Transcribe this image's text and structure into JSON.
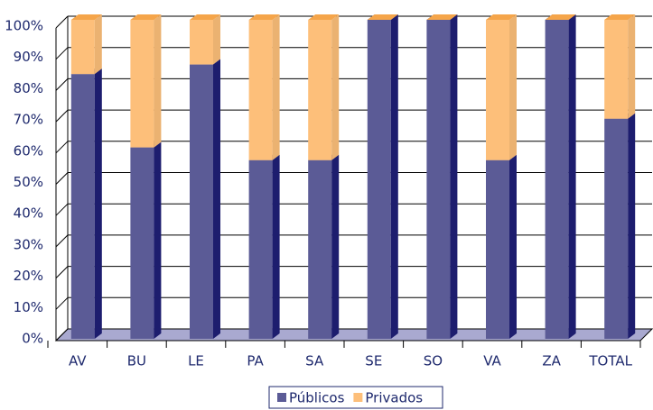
{
  "chart_data": {
    "type": "bar",
    "stacked": true,
    "categories": [
      "AV",
      "BU",
      "LE",
      "PA",
      "SA",
      "SE",
      "SO",
      "VA",
      "ZA",
      "TOTAL"
    ],
    "series": [
      {
        "name": "Públicos",
        "color": "#5b5b96",
        "values": [
          83,
          60,
          86,
          56,
          56,
          100,
          100,
          56,
          100,
          69
        ]
      },
      {
        "name": "Privados",
        "color": "#fdbf7a",
        "values": [
          17,
          40,
          14,
          44,
          44,
          0,
          0,
          44,
          0,
          31
        ]
      }
    ],
    "ylim": [
      0,
      100
    ],
    "yticks": [
      {
        "value": 0,
        "label": "0%"
      },
      {
        "value": 10,
        "label": "10%"
      },
      {
        "value": 20,
        "label": "20%"
      },
      {
        "value": 30,
        "label": "30%"
      },
      {
        "value": 40,
        "label": "40%"
      },
      {
        "value": 50,
        "label": "50%"
      },
      {
        "value": 60,
        "label": "60%"
      },
      {
        "value": 70,
        "label": "70%"
      },
      {
        "value": 80,
        "label": "80%"
      },
      {
        "value": 90,
        "label": "90%"
      },
      {
        "value": 100,
        "label": "100%"
      }
    ],
    "grid": true,
    "legend": "bottom"
  }
}
